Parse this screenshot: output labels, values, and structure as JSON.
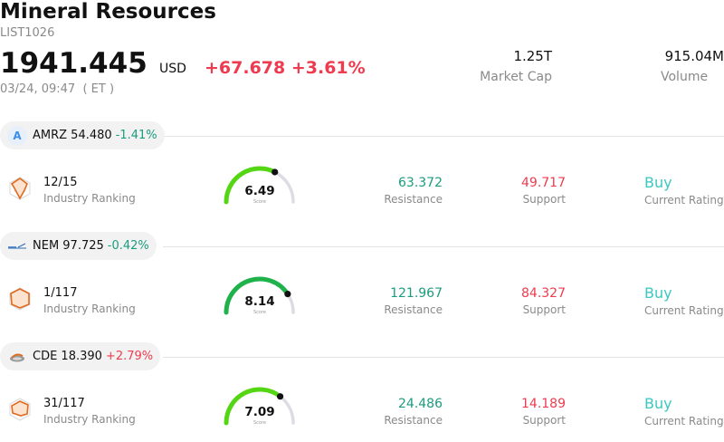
{
  "header": {
    "title": "Mineral Resources",
    "code": "LIST1026",
    "price": "1941.445",
    "currency": "USD",
    "change": "+67.678 +3.61%",
    "timestamp": "03/24, 09:47  ( ET )",
    "market_cap_value": "1.25T",
    "market_cap_label": "Market Cap",
    "volume_value": "915.04M",
    "volume_label": "Volume"
  },
  "stocks": [
    {
      "ticker_price": "AMRZ 54.480",
      "change": "-1.41%",
      "direction": "down",
      "logo_icon": "amrz-letter-logo",
      "logo_letter": "A",
      "rank": "12/15",
      "rank_label": "Industry Ranking",
      "score": "6.49",
      "score_value": 6.49,
      "score_label": "Score",
      "resistance": "63.372",
      "resistance_label": "Resistance",
      "support": "49.717",
      "support_label": "Support",
      "rating": "Buy",
      "rating_label": "Current Rating"
    },
    {
      "ticker_price": "NEM 97.725",
      "change": "-0.42%",
      "direction": "down",
      "logo_icon": "nem-wordmark-logo",
      "logo_letter": "",
      "rank": "1/117",
      "rank_label": "Industry Ranking",
      "score": "8.14",
      "score_value": 8.14,
      "score_label": "Score",
      "resistance": "121.967",
      "resistance_label": "Resistance",
      "support": "84.327",
      "support_label": "Support",
      "rating": "Buy",
      "rating_label": "Current Rating"
    },
    {
      "ticker_price": "CDE 18.390",
      "change": "+2.79%",
      "direction": "up",
      "logo_icon": "cde-logo",
      "logo_letter": "",
      "rank": "31/117",
      "rank_label": "Industry Ranking",
      "score": "7.09",
      "score_value": 7.09,
      "score_label": "Score",
      "resistance": "24.486",
      "resistance_label": "Resistance",
      "support": "14.189",
      "support_label": "Support",
      "rating": "Buy",
      "rating_label": "Current Rating"
    }
  ],
  "colors": {
    "up": "#ef3b4f",
    "down": "#1a9c7e",
    "rating": "#3bc8c0",
    "gauge_low": "#55d615",
    "gauge_high": "#1fb24a",
    "gauge_track": "#dcdce4"
  }
}
